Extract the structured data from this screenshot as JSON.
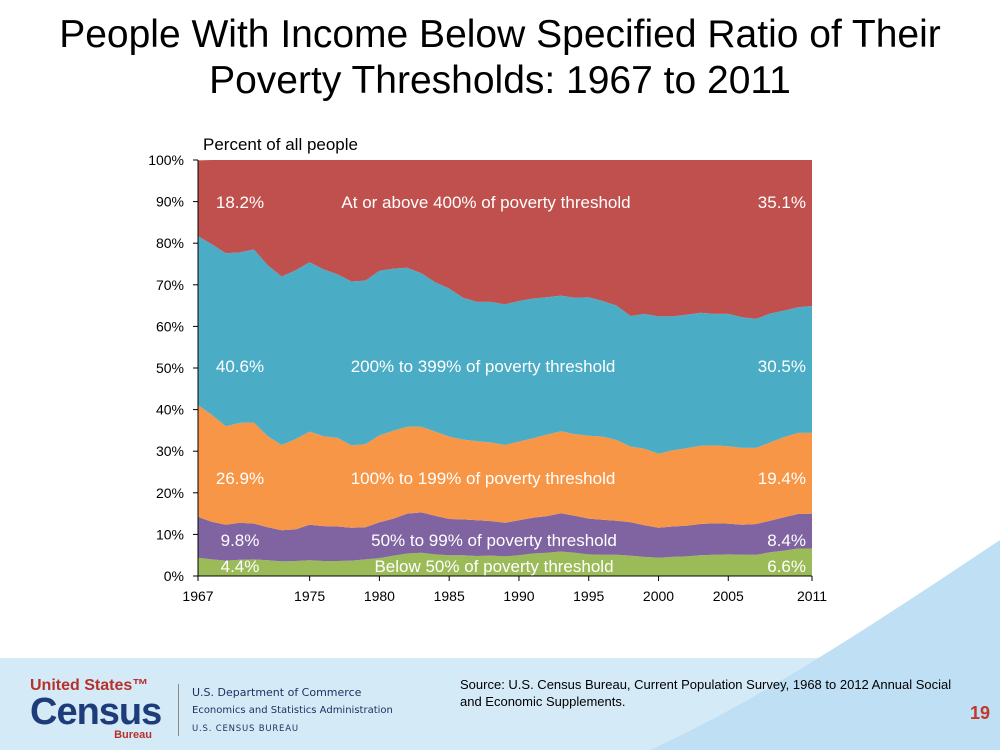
{
  "title": "People With Income Below Specified Ratio of Their Poverty Thresholds:  1967 to 2011",
  "footer": {
    "source": "Source: U.S. Census Bureau, Current Population Survey, 1968 to 2012 Annual Social and Economic Supplements.",
    "page_number": "19",
    "logo_line1": "United States™",
    "logo_line2": "Census",
    "logo_line3": "Bureau",
    "agency_line1": "U.S. Department of Commerce",
    "agency_line2": "Economics and Statistics Administration",
    "agency_line3": "U.S. CENSUS BUREAU"
  },
  "colors": {
    "band_below50": "#9bbb59",
    "band_50_99": "#8064a2",
    "band_100_199": "#f79646",
    "band_200_399": "#4bacc6",
    "band_400_plus": "#c0504d",
    "footer_band": "#d5eaf7",
    "page_number": "#c0392b"
  },
  "chart_data": {
    "type": "area",
    "stacked": true,
    "ylabel": "Percent of all people",
    "ylim": [
      0,
      100
    ],
    "yticks": [
      "0%",
      "10%",
      "20%",
      "30%",
      "40%",
      "50%",
      "60%",
      "70%",
      "80%",
      "90%",
      "100%"
    ],
    "xlim": [
      1967,
      2011
    ],
    "xticks": [
      "1967",
      "1975",
      "1980",
      "1985",
      "1990",
      "1995",
      "2000",
      "2005",
      "2011"
    ],
    "x": [
      1967,
      1968,
      1969,
      1970,
      1971,
      1972,
      1973,
      1974,
      1975,
      1976,
      1977,
      1978,
      1979,
      1980,
      1981,
      1982,
      1983,
      1984,
      1985,
      1986,
      1987,
      1988,
      1989,
      1990,
      1991,
      1992,
      1993,
      1994,
      1995,
      1996,
      1997,
      1998,
      1999,
      2000,
      2001,
      2002,
      2003,
      2004,
      2005,
      2006,
      2007,
      2008,
      2009,
      2010,
      2011
    ],
    "series": [
      {
        "name": "Below 50% of poverty threshold",
        "start_label": "4.4%",
        "end_label": "6.6%",
        "values": [
          4.4,
          4.0,
          3.7,
          3.9,
          4.0,
          3.8,
          3.5,
          3.6,
          3.8,
          3.6,
          3.6,
          3.7,
          4.0,
          4.3,
          4.9,
          5.4,
          5.6,
          5.2,
          5.0,
          5.0,
          4.8,
          4.9,
          4.7,
          5.0,
          5.4,
          5.6,
          5.9,
          5.6,
          5.2,
          5.1,
          5.1,
          4.9,
          4.6,
          4.4,
          4.6,
          4.7,
          5.0,
          5.1,
          5.2,
          5.1,
          5.1,
          5.7,
          6.1,
          6.6,
          6.6
        ]
      },
      {
        "name": "50% to 99% of poverty threshold",
        "start_label": "9.8%",
        "end_label": "8.4%",
        "values": [
          9.8,
          9.0,
          8.6,
          8.9,
          8.6,
          7.9,
          7.5,
          7.6,
          8.5,
          8.4,
          8.3,
          7.9,
          7.7,
          8.6,
          8.9,
          9.6,
          9.7,
          9.3,
          8.7,
          8.6,
          8.6,
          8.3,
          8.1,
          8.4,
          8.6,
          8.8,
          9.2,
          8.9,
          8.6,
          8.4,
          8.2,
          8.0,
          7.6,
          7.2,
          7.3,
          7.4,
          7.5,
          7.6,
          7.4,
          7.2,
          7.4,
          7.6,
          8.0,
          8.3,
          8.4
        ]
      },
      {
        "name": "100% to 199% of poverty threshold",
        "start_label": "26.9%",
        "end_label": "19.4%",
        "values": [
          26.9,
          25.7,
          23.7,
          24.0,
          24.3,
          21.9,
          20.5,
          21.7,
          22.4,
          21.6,
          21.3,
          19.8,
          20.0,
          20.9,
          21.1,
          20.9,
          20.6,
          20.2,
          19.8,
          19.2,
          19.0,
          18.9,
          18.7,
          18.9,
          19.1,
          19.6,
          19.7,
          19.6,
          19.9,
          20.0,
          19.4,
          18.2,
          18.4,
          17.8,
          18.3,
          18.6,
          18.8,
          18.7,
          18.6,
          18.5,
          18.3,
          18.8,
          19.3,
          19.5,
          19.4
        ]
      },
      {
        "name": "200% to 399% of poverty threshold",
        "start_label": "40.6%",
        "end_label": "30.5%",
        "values": [
          40.6,
          41.0,
          41.6,
          41.0,
          41.6,
          41.1,
          40.5,
          40.6,
          40.7,
          40.1,
          39.3,
          39.4,
          39.3,
          39.6,
          39.0,
          38.2,
          36.9,
          35.9,
          35.6,
          34.1,
          33.5,
          33.8,
          33.8,
          33.8,
          33.6,
          33.0,
          32.6,
          32.8,
          33.3,
          32.6,
          32.3,
          31.4,
          32.4,
          33.0,
          32.2,
          32.1,
          32.0,
          31.6,
          31.8,
          31.4,
          31.0,
          31.0,
          30.4,
          30.2,
          30.5
        ]
      },
      {
        "name": "At or above 400% of poverty threshold",
        "start_label": "18.2%",
        "end_label": "35.1%",
        "values": [
          18.2,
          20.3,
          22.4,
          22.2,
          21.5,
          25.3,
          28.0,
          26.5,
          24.6,
          26.3,
          27.5,
          29.2,
          29.0,
          26.6,
          26.1,
          25.9,
          27.2,
          29.4,
          30.9,
          33.1,
          34.1,
          34.1,
          34.7,
          33.9,
          33.3,
          33.0,
          32.6,
          33.1,
          33.0,
          33.9,
          35.0,
          37.5,
          37.0,
          37.6,
          37.6,
          37.2,
          36.7,
          37.0,
          37.0,
          37.8,
          38.2,
          36.9,
          36.2,
          35.4,
          35.1
        ]
      }
    ]
  }
}
